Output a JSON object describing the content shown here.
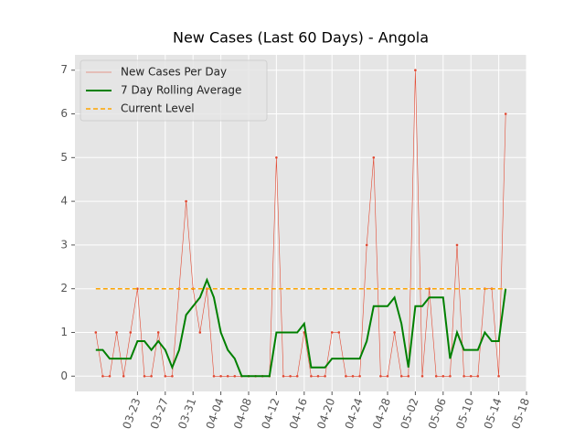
{
  "chart_data": {
    "type": "line",
    "title": "New Cases (Last 60 Days) - Angola",
    "x": [
      "03-17",
      "03-18",
      "03-19",
      "03-20",
      "03-21",
      "03-22",
      "03-23",
      "03-24",
      "03-25",
      "03-26",
      "03-27",
      "03-28",
      "03-29",
      "03-30",
      "03-31",
      "04-01",
      "04-02",
      "04-03",
      "04-04",
      "04-05",
      "04-06",
      "04-07",
      "04-08",
      "04-09",
      "04-10",
      "04-11",
      "04-12",
      "04-13",
      "04-14",
      "04-15",
      "04-16",
      "04-17",
      "04-18",
      "04-19",
      "04-20",
      "04-21",
      "04-22",
      "04-23",
      "04-24",
      "04-25",
      "04-26",
      "04-27",
      "04-28",
      "04-29",
      "04-30",
      "05-01",
      "05-02",
      "05-03",
      "05-04",
      "05-05",
      "05-06",
      "05-07",
      "05-08",
      "05-09",
      "05-10",
      "05-11",
      "05-12",
      "05-13",
      "05-14",
      "05-15"
    ],
    "series": [
      {
        "name": "New Cases Per Day",
        "color": "#e24a33",
        "style": "thin-markers",
        "values": [
          1,
          0,
          0,
          1,
          0,
          1,
          2,
          0,
          0,
          1,
          0,
          0,
          2,
          4,
          2,
          1,
          2,
          0,
          0,
          0,
          0,
          0,
          0,
          0,
          0,
          0,
          5,
          0,
          0,
          0,
          1,
          0,
          0,
          0,
          1,
          1,
          0,
          0,
          0,
          3,
          5,
          0,
          0,
          1,
          0,
          0,
          7,
          0,
          2,
          0,
          0,
          0,
          3,
          0,
          0,
          0,
          2,
          2,
          0,
          6
        ]
      },
      {
        "name": "7 Day Rolling Average",
        "color": "#008000",
        "style": "thick",
        "values": [
          0.6,
          0.6,
          0.4,
          0.4,
          0.4,
          0.4,
          0.8,
          0.8,
          0.6,
          0.8,
          0.6,
          0.2,
          0.6,
          1.4,
          1.6,
          1.8,
          2.2,
          1.8,
          1.0,
          0.6,
          0.4,
          0,
          0,
          0,
          0,
          0,
          1.0,
          1.0,
          1.0,
          1.0,
          1.2,
          0.2,
          0.2,
          0.2,
          0.4,
          0.4,
          0.4,
          0.4,
          0.4,
          0.8,
          1.6,
          1.6,
          1.6,
          1.8,
          1.2,
          0.2,
          1.6,
          1.6,
          1.8,
          1.8,
          1.8,
          0.4,
          1.0,
          0.6,
          0.6,
          0.6,
          1.0,
          0.8,
          0.8,
          2.0
        ]
      },
      {
        "name": "Current Level",
        "color": "#ffa500",
        "style": "hline",
        "value": 2
      }
    ],
    "xlim": [
      "03-14",
      "05-18"
    ],
    "xticks": [
      "03-23",
      "03-27",
      "03-31",
      "04-04",
      "04-08",
      "04-12",
      "04-16",
      "04-20",
      "04-24",
      "04-28",
      "05-02",
      "05-06",
      "05-10",
      "05-14",
      "05-18"
    ],
    "ylim": [
      -0.35,
      7.35
    ],
    "yticks": [
      0,
      1,
      2,
      3,
      4,
      5,
      6,
      7
    ],
    "grid": true,
    "legend": "upper-left"
  }
}
